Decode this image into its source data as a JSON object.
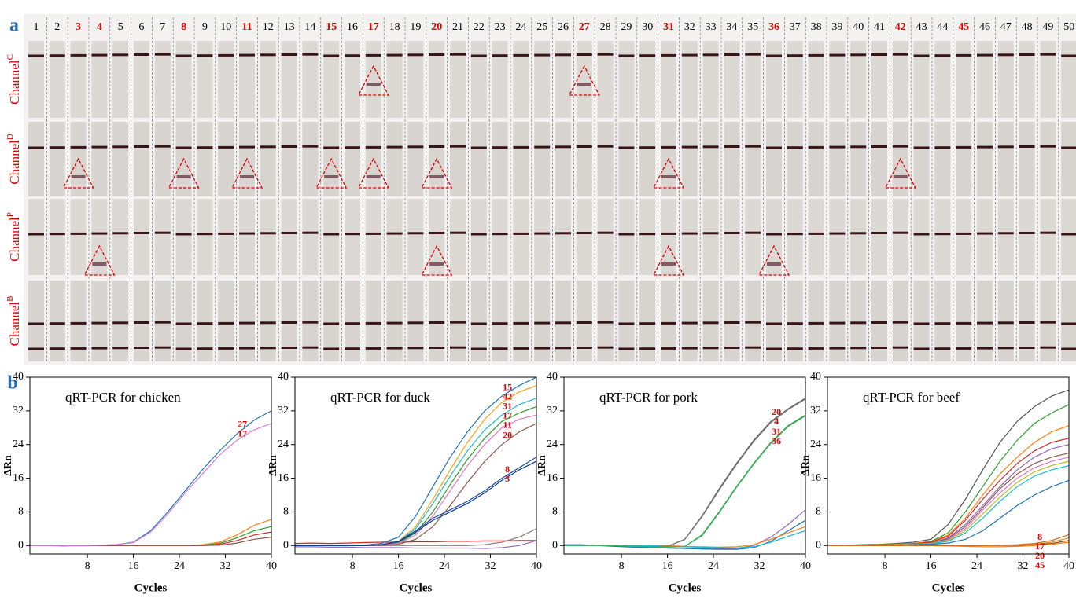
{
  "panel_a": {
    "label": "a",
    "lanes": [
      "1",
      "2",
      "3",
      "4",
      "5",
      "6",
      "7",
      "8",
      "9",
      "10",
      "11",
      "12",
      "13",
      "14",
      "15",
      "16",
      "17",
      "18",
      "19",
      "20",
      "21",
      "22",
      "23",
      "24",
      "25",
      "26",
      "27",
      "28",
      "29",
      "30",
      "31",
      "32",
      "33",
      "34",
      "35",
      "36",
      "37",
      "38",
      "39",
      "40",
      "41",
      "42",
      "43",
      "44",
      "45",
      "46",
      "47",
      "48",
      "49",
      "50"
    ],
    "highlighted_lanes": [
      3,
      4,
      8,
      11,
      15,
      17,
      20,
      27,
      31,
      36,
      42,
      45
    ],
    "channels": [
      {
        "name": "Channel",
        "sup": "C",
        "positive_lanes": [
          17,
          27
        ]
      },
      {
        "name": "Channel",
        "sup": "D",
        "positive_lanes": [
          3,
          8,
          11,
          15,
          17,
          20,
          31,
          42
        ]
      },
      {
        "name": "Channel",
        "sup": "P",
        "positive_lanes": [
          4,
          20,
          31,
          36
        ]
      },
      {
        "name": "Channel",
        "sup": "B",
        "positive_lanes": []
      }
    ]
  },
  "panel_b": {
    "label": "b"
  },
  "chart_data": [
    {
      "type": "line",
      "title": "qRT-PCR for chicken",
      "xlabel": "Cycles",
      "ylabel": "ΔRn",
      "x": [
        -2,
        1,
        4,
        7,
        10,
        13,
        16,
        19,
        22,
        25,
        28,
        31,
        34,
        37,
        40
      ],
      "xlim": [
        -2,
        40
      ],
      "ylim": [
        -2,
        40
      ],
      "xticks": [
        8,
        16,
        24,
        32,
        40
      ],
      "yticks": [
        0,
        8,
        16,
        24,
        32,
        40
      ],
      "series": [
        {
          "color": "#ff7f0e",
          "values": [
            0,
            0,
            0,
            -0.1,
            0,
            0,
            0,
            0,
            0,
            0,
            0.2,
            0.8,
            2.5,
            4.8,
            6.2
          ]
        },
        {
          "color": "#2ca02c",
          "values": [
            0,
            0,
            0,
            0,
            0,
            0,
            0,
            0,
            0,
            0,
            0.1,
            0.5,
            1.8,
            3.5,
            4.5
          ]
        },
        {
          "color": "#d62728",
          "values": [
            0,
            0,
            -0.1,
            0,
            0,
            0,
            0,
            0,
            0,
            0,
            0,
            0.3,
            1.2,
            2.5,
            3.2
          ]
        },
        {
          "color": "#8c564b",
          "values": [
            0,
            0,
            0,
            0,
            0,
            0,
            0,
            0,
            0,
            0,
            0,
            0.1,
            0.6,
            1.5,
            2
          ]
        },
        {
          "name": "27",
          "color": "#1f77b4",
          "values": [
            0,
            0,
            0,
            0,
            0.1,
            0.2,
            0.8,
            3.5,
            8,
            13,
            18,
            22.5,
            26.5,
            29.8,
            32
          ]
        },
        {
          "name": "17",
          "color": "#d67fd6",
          "values": [
            0,
            0,
            0,
            0,
            0.1,
            0.2,
            0.7,
            3.2,
            7.5,
            12.5,
            17,
            21.5,
            25,
            27.5,
            29
          ]
        }
      ]
    },
    {
      "type": "line",
      "title": "qRT-PCR for duck",
      "xlabel": "Cycles",
      "ylabel": "ΔRn",
      "x": [
        -2,
        1,
        4,
        7,
        10,
        13,
        16,
        19,
        22,
        25,
        28,
        31,
        34,
        37,
        40
      ],
      "xlim": [
        -2,
        40
      ],
      "ylim": [
        -2,
        40
      ],
      "xticks": [
        8,
        16,
        24,
        32,
        40
      ],
      "yticks": [
        0,
        8,
        16,
        24,
        32,
        40
      ],
      "series": [
        {
          "color": "#d62728",
          "values": [
            0.5,
            0.6,
            0.5,
            0.6,
            0.7,
            0.8,
            0.8,
            0.9,
            0.9,
            1,
            1,
            1.1,
            1.1,
            1.2,
            1.2
          ]
        },
        {
          "color": "#7f7f7f",
          "values": [
            0,
            0,
            0,
            0,
            0,
            0,
            0,
            0,
            0,
            0,
            0,
            0.2,
            0.8,
            2,
            4
          ]
        },
        {
          "color": "#9467bd",
          "values": [
            -0.3,
            -0.3,
            -0.4,
            -0.4,
            -0.5,
            -0.5,
            -0.5,
            -0.6,
            -0.6,
            -0.6,
            -0.6,
            -0.7,
            -0.5,
            0,
            1.2
          ]
        },
        {
          "name": "15",
          "color": "#1f77b4",
          "values": [
            0,
            0,
            0,
            0,
            0.1,
            0.5,
            2,
            7,
            14,
            21,
            27,
            32,
            35.5,
            38,
            40
          ]
        },
        {
          "name": "42",
          "color": "#ff9f0e",
          "values": [
            0,
            0,
            0,
            0,
            0,
            0.2,
            1,
            4.5,
            11,
            18,
            24.5,
            30,
            34,
            36.5,
            38
          ]
        },
        {
          "name": "31",
          "color": "#17becf",
          "values": [
            0,
            0,
            0,
            0,
            0,
            0.2,
            0.9,
            4,
            10,
            16.5,
            22.5,
            27.5,
            31,
            33.5,
            35
          ]
        },
        {
          "name": "17",
          "color": "#2ca02c",
          "values": [
            0,
            0,
            0,
            0,
            0,
            0.1,
            0.6,
            3,
            8,
            14.5,
            20.5,
            25.5,
            29.5,
            31.5,
            33
          ]
        },
        {
          "name": "11",
          "color": "#e377c2",
          "values": [
            0,
            0,
            0,
            0,
            0,
            0.1,
            0.5,
            2.5,
            7,
            13,
            19,
            24,
            28,
            30,
            31
          ]
        },
        {
          "name": "20",
          "color": "#8c564b",
          "values": [
            0,
            0,
            0,
            0,
            0,
            0,
            0.3,
            1.5,
            4.5,
            9.5,
            15,
            20,
            24,
            27,
            29
          ]
        },
        {
          "name": "8",
          "color": "#1f4fa0",
          "values": [
            0,
            0,
            0,
            0,
            0,
            0.2,
            1,
            3.5,
            6.5,
            8.5,
            10.5,
            13,
            16,
            18.5,
            21
          ]
        },
        {
          "name": "3",
          "color": "#0d3b8a",
          "values": [
            0,
            0,
            0,
            0,
            0,
            0.2,
            0.9,
            3.2,
            6,
            8,
            10,
            12.5,
            15.5,
            18,
            20
          ]
        }
      ]
    },
    {
      "type": "line",
      "title": "qRT-PCR for pork",
      "xlabel": "Cycles",
      "ylabel": "ΔRn",
      "x": [
        -2,
        1,
        4,
        7,
        10,
        13,
        16,
        19,
        22,
        25,
        28,
        31,
        34,
        37,
        40
      ],
      "xlim": [
        -2,
        40
      ],
      "ylim": [
        -2,
        40
      ],
      "xticks": [
        8,
        16,
        24,
        32,
        40
      ],
      "yticks": [
        0,
        8,
        16,
        24,
        32,
        40
      ],
      "series": [
        {
          "color": "#9467bd",
          "values": [
            0,
            0,
            0,
            0,
            -0.3,
            -0.5,
            -0.6,
            -0.7,
            -0.8,
            -0.8,
            -0.7,
            0,
            2,
            5,
            8.5
          ]
        },
        {
          "color": "#1f77b4",
          "values": [
            0.2,
            0.2,
            0,
            -0.2,
            -0.4,
            -0.5,
            -0.6,
            -0.7,
            -0.8,
            -0.9,
            -0.9,
            -0.5,
            1,
            3.5,
            6
          ]
        },
        {
          "color": "#ff7f0e",
          "values": [
            0,
            0,
            0,
            0,
            0,
            0,
            0,
            -0.2,
            -0.3,
            -0.4,
            -0.3,
            0.2,
            1.5,
            3,
            4.5
          ]
        },
        {
          "color": "#17becf",
          "values": [
            0,
            0,
            0,
            0,
            0,
            0,
            -0.2,
            -0.3,
            -0.4,
            -0.5,
            -0.6,
            -0.3,
            0.8,
            2.2,
            3.5
          ]
        },
        {
          "name": "20",
          "color": "#555555",
          "values": [
            0,
            0,
            0,
            0,
            -0.2,
            -0.3,
            -0.2,
            1.5,
            7,
            13.5,
            19.5,
            25,
            29.5,
            32.5,
            35
          ]
        },
        {
          "name": "4",
          "color": "#7f7f7f",
          "values": [
            0,
            0,
            0,
            0,
            -0.2,
            -0.3,
            -0.2,
            1.4,
            6.8,
            13.2,
            19.2,
            24.7,
            29.2,
            32.3,
            34.8
          ]
        },
        {
          "name": "31",
          "color": "#2ca02c",
          "values": [
            0,
            0,
            0,
            0,
            -0.2,
            -0.3,
            -0.4,
            -0.2,
            2.5,
            8,
            14,
            19.5,
            24.5,
            28.5,
            31
          ]
        },
        {
          "name": "36",
          "color": "#3cb371",
          "values": [
            0,
            0,
            0,
            0,
            -0.2,
            -0.3,
            -0.4,
            -0.2,
            2.3,
            7.8,
            13.8,
            19.3,
            24.3,
            28.3,
            30.8
          ]
        }
      ]
    },
    {
      "type": "line",
      "title": "qRT-PCR for beef",
      "xlabel": "Cycles",
      "ylabel": "ΔRn",
      "x": [
        -2,
        1,
        4,
        7,
        10,
        13,
        16,
        19,
        22,
        25,
        28,
        31,
        34,
        37,
        40
      ],
      "xlim": [
        -2,
        40
      ],
      "ylim": [
        -2,
        40
      ],
      "xticks": [
        8,
        16,
        24,
        32,
        40
      ],
      "yticks": [
        0,
        8,
        16,
        24,
        32,
        40
      ],
      "series": [
        {
          "color": "#555555",
          "values": [
            0,
            0.1,
            0.2,
            0.3,
            0.5,
            0.8,
            1.5,
            5,
            11,
            18,
            24.5,
            29.5,
            33,
            35.5,
            37
          ]
        },
        {
          "color": "#2ca02c",
          "values": [
            0,
            0,
            0.1,
            0.2,
            0.3,
            0.5,
            1,
            3,
            8,
            14,
            20,
            25,
            29,
            31.5,
            33.5
          ]
        },
        {
          "color": "#ff7f0e",
          "values": [
            0,
            0,
            0.1,
            0.2,
            0.3,
            0.5,
            0.9,
            2.5,
            6.5,
            12,
            17,
            21,
            24.5,
            27,
            28.5
          ]
        },
        {
          "color": "#d62728",
          "values": [
            0,
            0,
            0,
            0.1,
            0.2,
            0.4,
            0.8,
            2.2,
            6,
            11,
            15.5,
            19.5,
            22.5,
            24.5,
            25.5
          ]
        },
        {
          "color": "#9467bd",
          "values": [
            0,
            0,
            0,
            0.1,
            0.2,
            0.3,
            0.6,
            1.8,
            5,
            9.5,
            14,
            18,
            21,
            23,
            24
          ]
        },
        {
          "color": "#8c564b",
          "values": [
            0,
            0,
            0,
            0.1,
            0.2,
            0.3,
            0.6,
            1.6,
            4.5,
            9,
            13.5,
            17,
            19.5,
            21,
            22
          ]
        },
        {
          "color": "#e377c2",
          "values": [
            0,
            0,
            0,
            0.1,
            0.2,
            0.3,
            0.5,
            1.4,
            4,
            8.5,
            12.5,
            16,
            18.5,
            20,
            21
          ]
        },
        {
          "color": "#bcbd22",
          "values": [
            0,
            0,
            0,
            0.1,
            0.2,
            0.3,
            0.5,
            1.2,
            3.5,
            7.5,
            11.5,
            15,
            17.5,
            19,
            20
          ]
        },
        {
          "color": "#17becf",
          "values": [
            0,
            0,
            0,
            0.1,
            0.1,
            0.2,
            0.4,
            1,
            3,
            6.5,
            10.5,
            14,
            16.5,
            18,
            19
          ]
        },
        {
          "color": "#1f77b4",
          "values": [
            0,
            0,
            0,
            0,
            0.1,
            0.2,
            0.3,
            0.6,
            1.5,
            3.5,
            6.5,
            9.5,
            12,
            14,
            15.5
          ]
        },
        {
          "name": "45",
          "color": "#ff7f0e",
          "values": [
            0,
            0,
            0,
            0,
            0,
            0,
            0,
            -0.1,
            -0.2,
            -0.3,
            -0.3,
            -0.2,
            0,
            0.3,
            0.8
          ]
        },
        {
          "name": "20",
          "color": "#a0522d",
          "values": [
            0,
            0,
            0,
            0,
            0,
            0,
            0,
            0,
            0,
            0,
            0,
            0,
            0.2,
            0.5,
            1.2
          ]
        },
        {
          "name": "17",
          "color": "#e08a2e",
          "values": [
            0,
            0,
            0,
            0,
            0,
            0,
            0,
            0,
            0,
            0,
            0,
            0.1,
            0.3,
            0.8,
            1.8
          ]
        },
        {
          "name": "8",
          "color": "#d2691e",
          "values": [
            0,
            0,
            0,
            0,
            0,
            0,
            0,
            0,
            0,
            0,
            0.1,
            0.2,
            0.5,
            1.2,
            2.6
          ]
        }
      ]
    }
  ]
}
